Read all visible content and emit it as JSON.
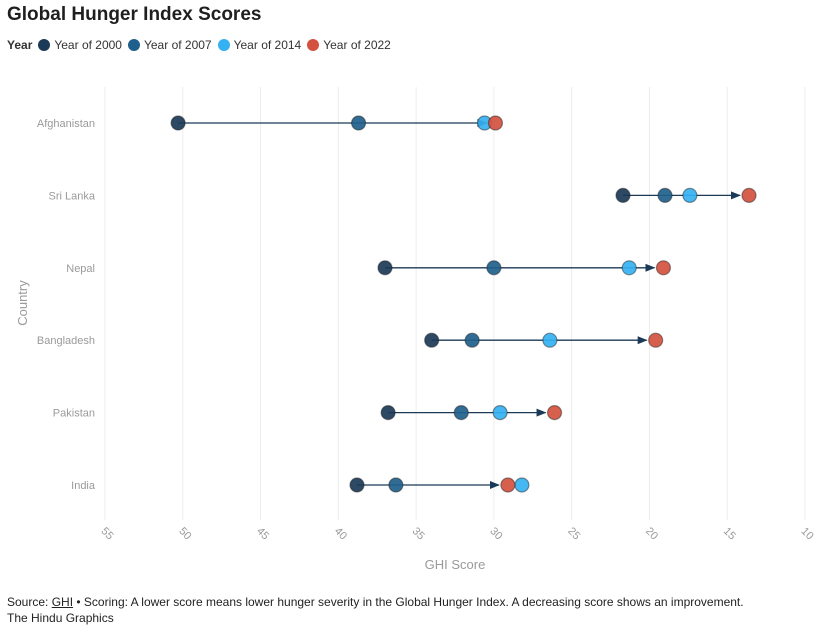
{
  "title": "Global Hunger Index Scores",
  "legend": {
    "title": "Year",
    "items": [
      {
        "label": "Year of 2000",
        "color": "#1b3a57"
      },
      {
        "label": "Year of 2007",
        "color": "#1f5f8b"
      },
      {
        "label": "Year of 2014",
        "color": "#35b1f1"
      },
      {
        "label": "Year of 2022",
        "color": "#d4513f"
      }
    ]
  },
  "footer": {
    "source_label": "Source:",
    "source_link": "GHI",
    "source_text": "• Scoring: A lower score means lower hunger severity in the Global Hunger Index. A decreasing score shows an improvement.",
    "credit": "The Hindu Graphics"
  },
  "chart_data": {
    "type": "scatter",
    "title": "Global Hunger Index Scores",
    "xlabel": "GHI Score",
    "ylabel": "Country",
    "xlim": [
      55,
      10
    ],
    "x_reversed": true,
    "x_ticks": [
      55,
      50,
      45,
      40,
      35,
      30,
      25,
      20,
      15,
      10
    ],
    "grid": true,
    "legend_position": "top-left",
    "categories": [
      "Afghanistan",
      "Sri Lanka",
      "Nepal",
      "Bangladesh",
      "Pakistan",
      "India"
    ],
    "series": [
      {
        "name": "Year of 2000",
        "color": "#1b3a57",
        "values": [
          50.3,
          21.7,
          37.0,
          34.0,
          36.8,
          38.8
        ]
      },
      {
        "name": "Year of 2007",
        "color": "#1f5f8b",
        "values": [
          38.7,
          19.0,
          30.0,
          31.4,
          32.1,
          36.3
        ]
      },
      {
        "name": "Year of 2014",
        "color": "#35b1f1",
        "values": [
          30.6,
          17.4,
          21.3,
          26.4,
          29.6,
          28.2
        ]
      },
      {
        "name": "Year of 2022",
        "color": "#d4513f",
        "values": [
          29.9,
          13.6,
          19.1,
          19.6,
          26.1,
          29.1
        ]
      }
    ]
  }
}
